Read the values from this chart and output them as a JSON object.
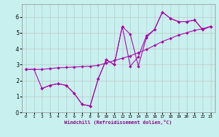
{
  "xlabel": "Windchill (Refroidissement éolien,°C)",
  "bg_color": "#c8f0ee",
  "line_color": "#aa00aa",
  "xlim": [
    -0.5,
    23.5
  ],
  "ylim": [
    0,
    6.8
  ],
  "xticks": [
    0,
    1,
    2,
    3,
    4,
    5,
    6,
    7,
    8,
    9,
    10,
    11,
    12,
    13,
    14,
    15,
    16,
    17,
    18,
    19,
    20,
    21,
    22,
    23
  ],
  "yticks": [
    0,
    1,
    2,
    3,
    4,
    5,
    6
  ],
  "grid_color": "#bbbbbb",
  "series1_x": [
    0,
    1,
    2,
    3,
    4,
    5,
    6,
    7,
    8,
    9,
    10,
    11,
    12,
    13,
    14,
    15,
    16,
    17,
    18,
    19,
    20,
    21,
    22,
    23
  ],
  "series1_y": [
    2.7,
    2.7,
    2.7,
    2.75,
    2.8,
    2.82,
    2.85,
    2.87,
    2.9,
    2.95,
    3.1,
    3.25,
    3.4,
    3.55,
    3.75,
    3.95,
    4.2,
    4.45,
    4.65,
    4.85,
    5.0,
    5.15,
    5.25,
    5.4
  ],
  "series2_x": [
    2,
    3,
    4,
    5,
    6,
    7,
    8,
    9,
    10,
    11,
    12,
    13,
    14,
    15,
    16,
    17,
    18,
    19,
    20,
    21,
    22,
    23
  ],
  "series2_y": [
    1.5,
    1.7,
    1.8,
    1.7,
    1.2,
    0.5,
    0.4,
    2.1,
    3.3,
    3.0,
    5.4,
    4.9,
    2.9,
    4.7,
    5.2,
    6.3,
    5.9,
    5.7,
    5.7,
    5.8,
    5.2,
    5.4
  ],
  "series3_x": [
    0,
    1,
    2,
    3,
    4,
    5,
    6,
    7,
    8,
    9,
    10,
    11,
    12,
    13,
    14,
    15,
    16,
    17,
    18,
    19,
    20,
    21,
    22,
    23
  ],
  "series3_y": [
    2.7,
    2.7,
    1.5,
    1.7,
    1.8,
    1.7,
    1.2,
    0.5,
    0.4,
    2.1,
    3.3,
    3.0,
    5.4,
    2.9,
    3.5,
    4.8,
    5.2,
    6.3,
    5.9,
    5.7,
    5.7,
    5.8,
    5.2,
    5.4
  ]
}
